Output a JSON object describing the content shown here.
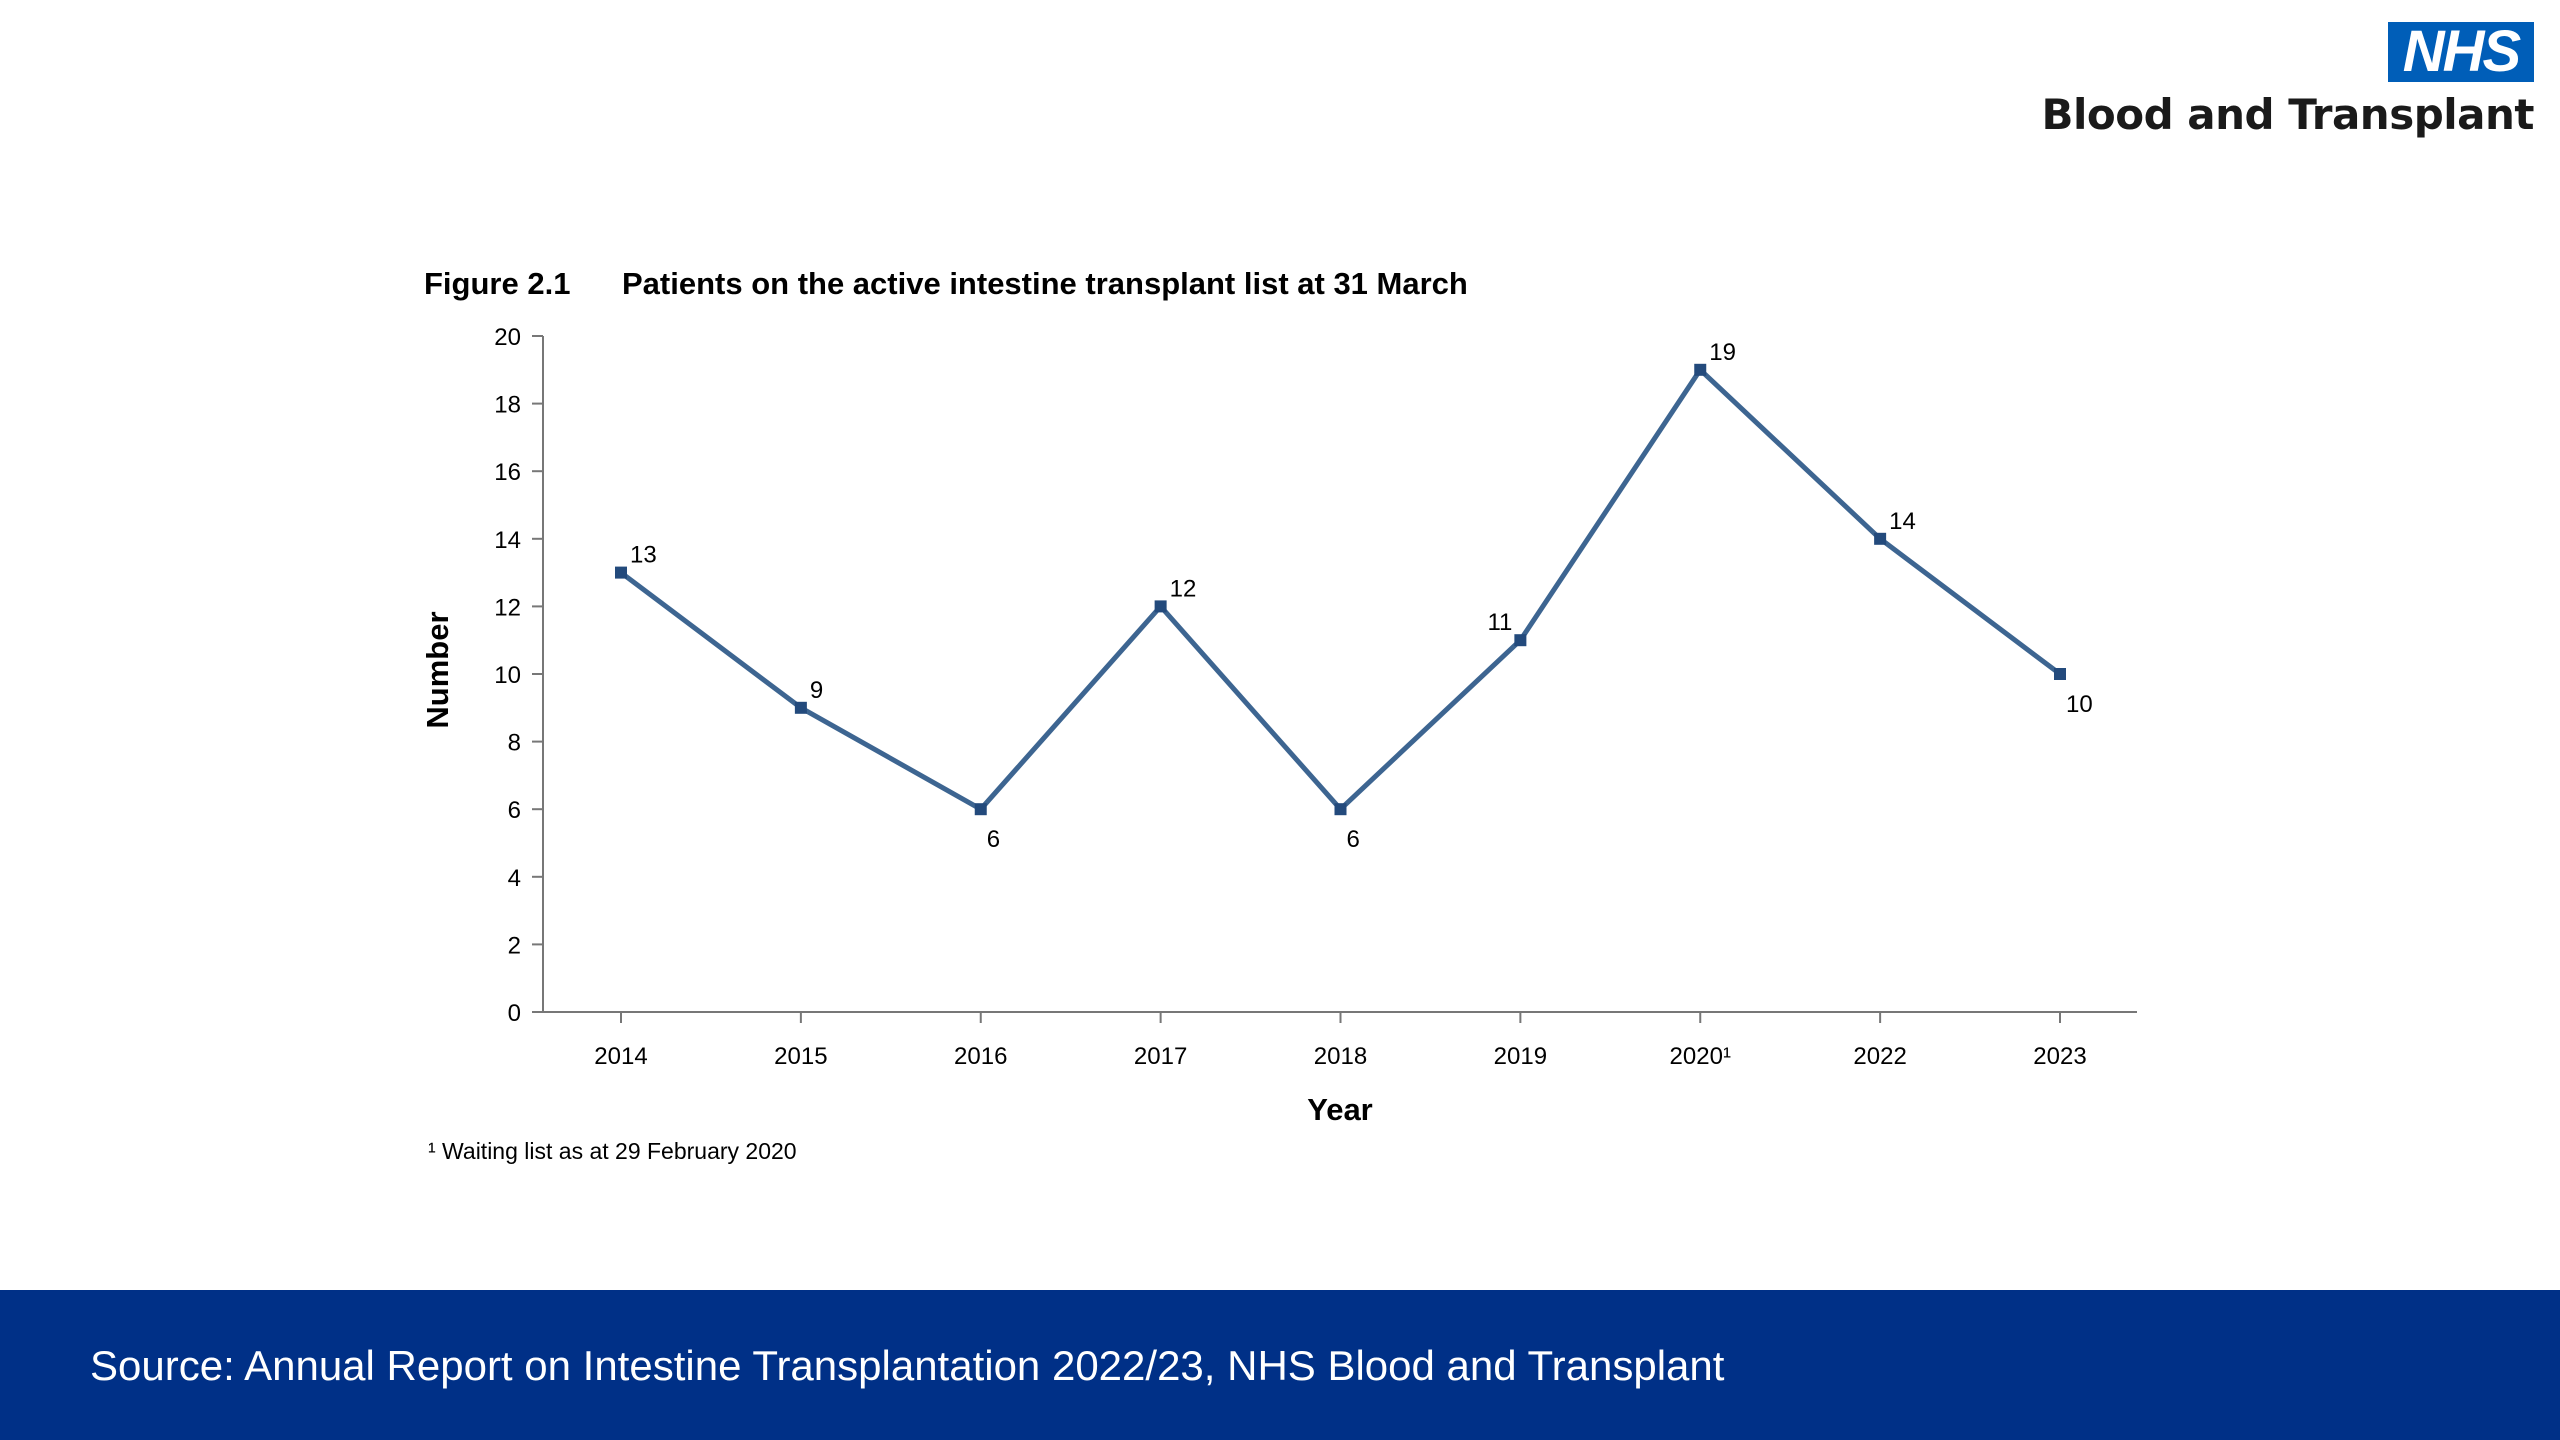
{
  "logo": {
    "nhs": "NHS",
    "org": "Blood and Transplant"
  },
  "figure": {
    "label": "Figure 2.1",
    "title": "Patients on the active intestine transplant list at 31 March",
    "footnote": "¹ Waiting list as at 29 February 2020"
  },
  "source": "Source: Annual Report on Intestine Transplantation 2022/23, NHS Blood and Transplant",
  "colors": {
    "line": "#3d6591",
    "marker": "#234a7c",
    "footer": "#003087",
    "nhs_blue": "#005eb8"
  },
  "chart_data": {
    "type": "line",
    "categories": [
      "2014",
      "2015",
      "2016",
      "2017",
      "2018",
      "2019",
      "2020¹",
      "2022",
      "2023"
    ],
    "series": [
      {
        "values": [
          13,
          9,
          6,
          12,
          6,
          11,
          19,
          14,
          10
        ]
      }
    ],
    "data_labels": [
      "13",
      "9",
      "6",
      "12",
      "6",
      "11",
      "19",
      "14",
      "10"
    ],
    "xlabel": "Year",
    "ylabel": "Number",
    "ylim": [
      0,
      20
    ],
    "yticks": [
      0,
      2,
      4,
      6,
      8,
      10,
      12,
      14,
      16,
      18,
      20
    ],
    "grid": false,
    "legend": "none"
  }
}
